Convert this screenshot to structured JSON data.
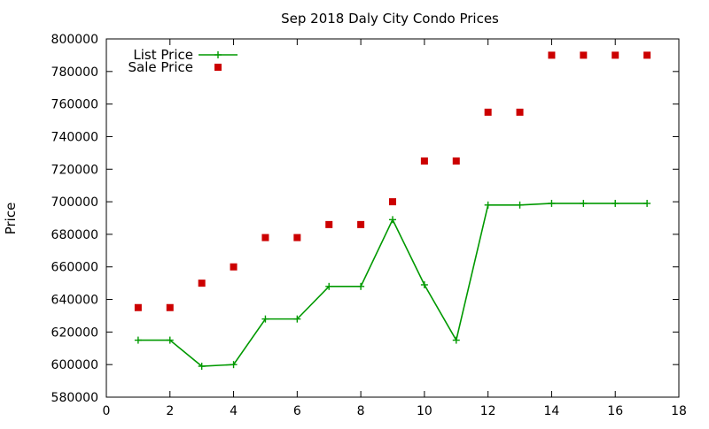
{
  "chart_data": {
    "type": "scatter",
    "title": "Sep 2018 Daly City Condo Prices",
    "xlabel": "",
    "ylabel": "Price",
    "xlim": [
      0,
      18
    ],
    "ylim": [
      580000,
      800000
    ],
    "xticks": [
      0,
      2,
      4,
      6,
      8,
      10,
      12,
      14,
      16,
      18
    ],
    "yticks": [
      580000,
      600000,
      620000,
      640000,
      660000,
      680000,
      700000,
      720000,
      740000,
      760000,
      780000,
      800000
    ],
    "grid": false,
    "legend_position": "top-left",
    "series": [
      {
        "name": "List Price",
        "style": "linespoints",
        "marker": "plus",
        "color": "#009900",
        "points": [
          [
            1,
            615000
          ],
          [
            2,
            615000
          ],
          [
            3,
            599000
          ],
          [
            4,
            600000
          ],
          [
            5,
            628000
          ],
          [
            6,
            628000
          ],
          [
            7,
            648000
          ],
          [
            8,
            648000
          ],
          [
            9,
            689000
          ],
          [
            10,
            649000
          ],
          [
            11,
            615000
          ],
          [
            12,
            698000
          ],
          [
            13,
            698000
          ],
          [
            14,
            699000
          ],
          [
            15,
            699000
          ],
          [
            16,
            699000
          ],
          [
            17,
            699000
          ]
        ]
      },
      {
        "name": "Sale Price",
        "style": "points",
        "marker": "square",
        "color": "#cc0000",
        "points": [
          [
            1,
            635000
          ],
          [
            2,
            635000
          ],
          [
            3,
            650000
          ],
          [
            4,
            660000
          ],
          [
            5,
            678000
          ],
          [
            6,
            678000
          ],
          [
            7,
            686000
          ],
          [
            8,
            686000
          ],
          [
            9,
            700000
          ],
          [
            10,
            725000
          ],
          [
            11,
            725000
          ],
          [
            12,
            755000
          ],
          [
            13,
            755000
          ],
          [
            14,
            790000
          ],
          [
            15,
            790000
          ],
          [
            16,
            790000
          ],
          [
            17,
            790000
          ]
        ]
      }
    ]
  }
}
